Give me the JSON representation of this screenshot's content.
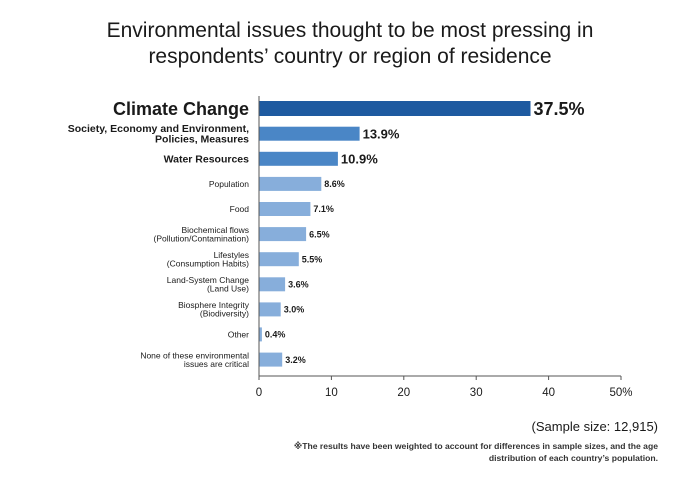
{
  "chart_data": {
    "type": "bar",
    "orientation": "horizontal",
    "title_lines": [
      "Environmental issues thought to be most pressing in",
      "respondents’ country or region of residence"
    ],
    "categories": [
      [
        "Climate Change"
      ],
      [
        "Society, Economy and Environment,",
        "Policies, Measures"
      ],
      [
        "Water Resources"
      ],
      [
        "Population"
      ],
      [
        "Food"
      ],
      [
        "Biochemical flows",
        "(Pollution/Contamination)"
      ],
      [
        "Lifestyles",
        "(Consumption Habits)"
      ],
      [
        "Land-System Change",
        "(Land Use)"
      ],
      [
        "Biosphere Integrity",
        "(Biodiversity)"
      ],
      [
        "Other"
      ],
      [
        "None of these environmental",
        "issues are critical"
      ]
    ],
    "values": [
      37.5,
      13.9,
      10.9,
      8.6,
      7.1,
      6.5,
      5.5,
      3.6,
      3.0,
      0.4,
      3.2
    ],
    "value_labels": [
      "37.5%",
      "13.9%",
      "10.9%",
      "8.6%",
      "7.1%",
      "6.5%",
      "5.5%",
      "3.6%",
      "3.0%",
      "0.4%",
      "3.2%"
    ],
    "xlim": [
      0,
      50
    ],
    "x_ticks": [
      "0",
      "10",
      "20",
      "30",
      "40",
      "50%"
    ],
    "colors": {
      "top": "#1e5aa0",
      "mid": "#4a86c6",
      "rest": "#87aedb"
    }
  },
  "footer": {
    "sample_size": "(Sample size: 12,915)",
    "note_lines": [
      "※The results have been weighted to account for differences in sample sizes, and the age",
      "distribution of each country’s population."
    ]
  }
}
